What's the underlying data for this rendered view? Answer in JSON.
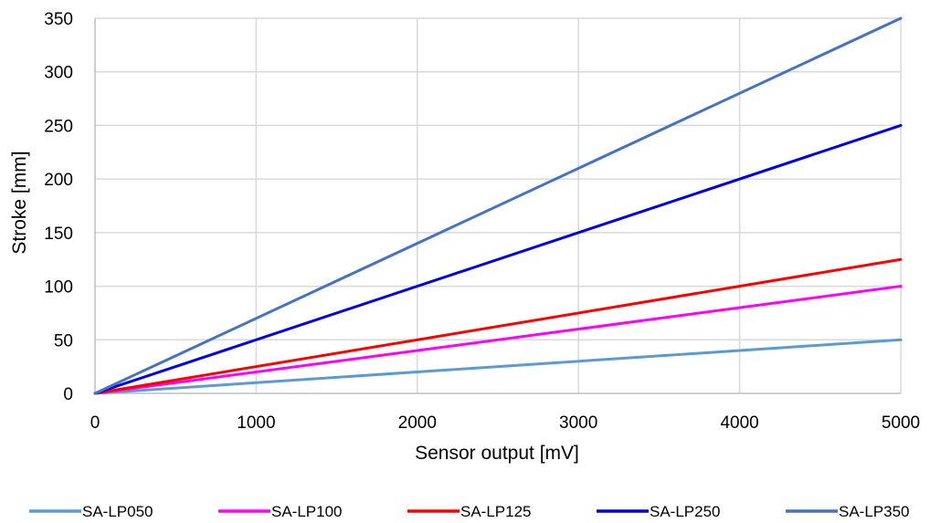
{
  "chart_data": {
    "type": "line",
    "xlabel": "Sensor output [mV]",
    "ylabel": "Stroke [mm]",
    "xlim": [
      0,
      5000
    ],
    "ylim": [
      0,
      350
    ],
    "x_ticks": [
      0,
      1000,
      2000,
      3000,
      4000,
      5000
    ],
    "y_ticks": [
      0,
      50,
      100,
      150,
      200,
      250,
      300,
      350
    ],
    "grid": true,
    "legend_position": "bottom",
    "series": [
      {
        "name": "SA-LP050",
        "color": "#5b9bd5",
        "x": [
          0,
          5000
        ],
        "y": [
          0,
          50
        ]
      },
      {
        "name": "SA-LP100",
        "color": "#ff00ff",
        "x": [
          0,
          5000
        ],
        "y": [
          0,
          100
        ]
      },
      {
        "name": "SA-LP125",
        "color": "#ff0000",
        "x": [
          0,
          5000
        ],
        "y": [
          0,
          125
        ]
      },
      {
        "name": "SA-LP250",
        "color": "#0000e6",
        "x": [
          0,
          5000
        ],
        "y": [
          0,
          250
        ]
      },
      {
        "name": "SA-LP350",
        "color": "#4472c4",
        "x": [
          0,
          5000
        ],
        "y": [
          0,
          350
        ]
      }
    ]
  }
}
